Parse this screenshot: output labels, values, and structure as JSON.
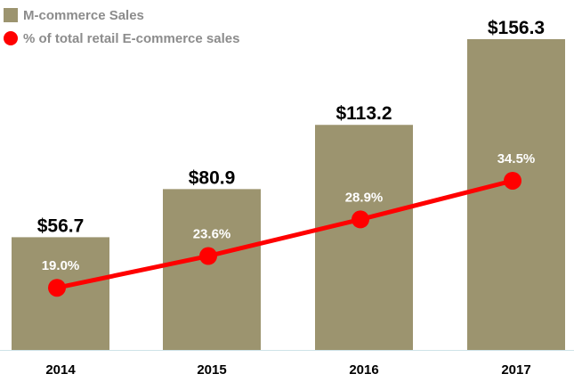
{
  "colors": {
    "bar": "#9c946f",
    "line": "#ff0000",
    "axis": "#cfe3e8",
    "legend_text": "#8c8c8c"
  },
  "legend": {
    "bar_label": "M-commerce Sales",
    "line_label": "% of total retail E-commerce sales"
  },
  "chart_data": {
    "type": "bar",
    "categories": [
      "2014",
      "2015",
      "2016",
      "2017"
    ],
    "series": [
      {
        "name": "M-commerce Sales",
        "type": "bar",
        "values": [
          56.7,
          80.9,
          113.2,
          156.3
        ],
        "data_labels": [
          "$56.7",
          "$80.9",
          "$113.2",
          "$156.3"
        ]
      },
      {
        "name": "% of total retail E-commerce sales",
        "type": "line",
        "values": [
          19.0,
          23.6,
          28.9,
          34.5
        ],
        "data_labels": [
          "19.0%",
          "23.6%",
          "28.9%",
          "34.5%"
        ]
      }
    ],
    "title": "",
    "xlabel": "",
    "ylabel": "",
    "ylim": [
      0,
      156.3
    ],
    "y2lim": [
      10,
      55
    ],
    "grid": false,
    "legend_position": "top-left"
  }
}
